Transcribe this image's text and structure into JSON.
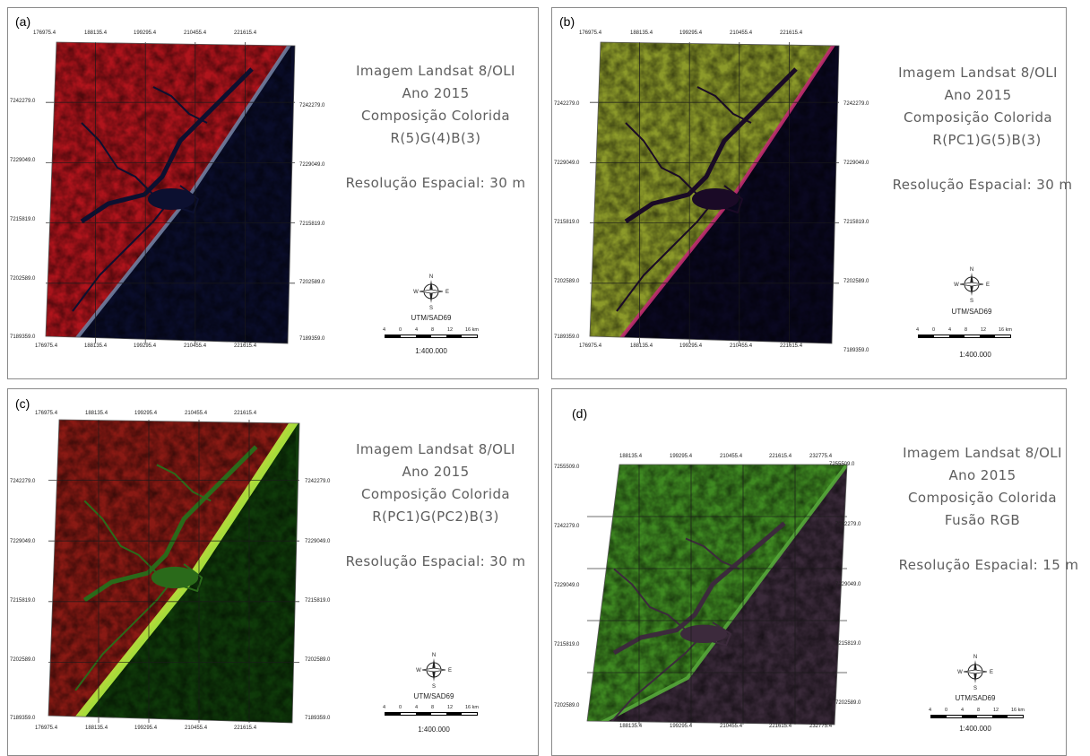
{
  "panels": [
    {
      "label": "(a)",
      "title": "Imagem Landsat 8/OLI",
      "year": "Ano 2015",
      "composition_title": "Composição Colorida",
      "composition": "R(5)G(4)B(3)",
      "resolution": "Resolução Espacial: 30 m",
      "datum": "UTM/SAD69",
      "scale": "1:400.000",
      "colors": {
        "land": "#b0141c",
        "sea": "#0a0d2a",
        "river": "#0c1030",
        "coast": "#6f7ea0"
      },
      "x_ticks": [
        "176975.4",
        "188135.4",
        "199295.4",
        "210455.4",
        "221615.4"
      ],
      "y_ticks": [
        "7242279.0",
        "7229049.0",
        "7215819.0",
        "7202589.0",
        "7189359.0"
      ]
    },
    {
      "label": "(b)",
      "title": "Imagem Landsat 8/OLI",
      "year": "Ano 2015",
      "composition_title": "Composição Colorida",
      "composition": "R(PC1)G(5)B(3)",
      "resolution": "Resolução Espacial: 30 m",
      "datum": "UTM/SAD69",
      "scale": "1:400.000",
      "colors": {
        "land": "#8c9a2a",
        "sea": "#0a0820",
        "river": "#1a0a26",
        "coast": "#c02c70"
      },
      "x_ticks": [
        "176975.4",
        "188135.4",
        "199295.4",
        "210455.4",
        "221615.4"
      ],
      "y_ticks": [
        "7242279.0",
        "7229049.0",
        "7215819.0",
        "7202589.0",
        "7189359.0"
      ]
    },
    {
      "label": "(c)",
      "title": "Imagem Landsat 8/OLI",
      "year": "Ano 2015",
      "composition_title": "Composição Colorida",
      "composition": "R(PC1)G(PC2)B(3)",
      "resolution": "Resolução Espacial: 30 m",
      "datum": "UTM/SAD69",
      "scale": "1:400.000",
      "colors": {
        "land": "#8a1a14",
        "sea": "#0f3a0a",
        "river": "#2a6a1a",
        "coast": "#b8f040"
      },
      "x_ticks": [
        "176975.4",
        "188135.4",
        "199295.4",
        "210455.4",
        "221615.4"
      ],
      "y_ticks": [
        "7242279.0",
        "7229049.0",
        "7215819.0",
        "7202589.0",
        "7189359.0"
      ]
    },
    {
      "label": "(d)",
      "title": "Imagem Landsat 8/OLI",
      "year": "Ano 2015",
      "composition_title": "Composição Colorida",
      "composition": "Fusão RGB",
      "resolution": "Resolução Espacial: 15 m",
      "datum": "UTM/SAD69",
      "scale": "1:400.000",
      "colors": {
        "land": "#3f8a22",
        "sea": "#3a2a3a",
        "river": "#3c2a3c",
        "coast": "#55a83a"
      },
      "x_ticks": [
        "188135.4",
        "199295.4",
        "210455.4",
        "221615.4",
        "232775.4"
      ],
      "y_ticks": [
        "7255509.0",
        "7242279.0",
        "7229049.0",
        "7215819.0",
        "7202589.0"
      ]
    }
  ],
  "scalebar_labels": [
    "4",
    "0",
    "4",
    "8",
    "12",
    "16 km"
  ],
  "compass_letters": {
    "n": "N",
    "s": "S",
    "e": "E",
    "w": "W"
  }
}
